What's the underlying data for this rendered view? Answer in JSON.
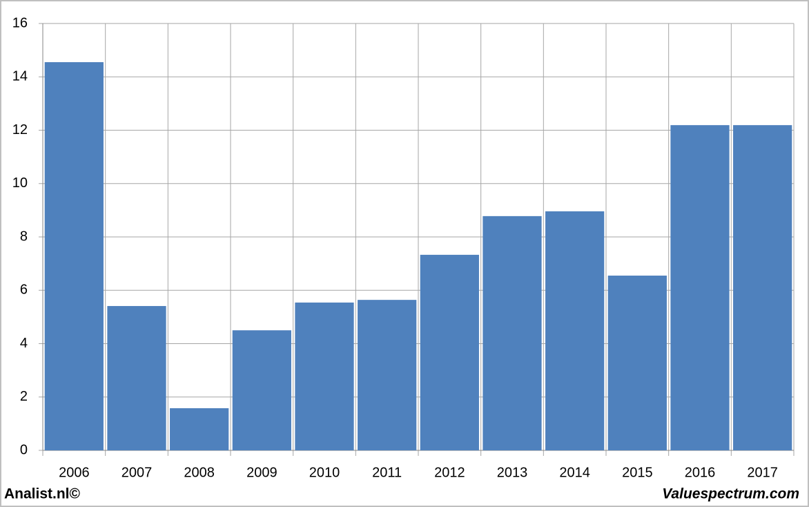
{
  "chart_data": {
    "type": "bar",
    "categories": [
      "2006",
      "2007",
      "2008",
      "2009",
      "2010",
      "2011",
      "2012",
      "2013",
      "2014",
      "2015",
      "2016",
      "2017"
    ],
    "values": [
      14.55,
      5.41,
      1.58,
      4.5,
      5.54,
      5.64,
      7.33,
      8.78,
      8.96,
      6.55,
      12.19,
      12.19
    ],
    "color": "#4f81bd",
    "ylim": [
      0,
      16
    ],
    "yticks": [
      0,
      2,
      4,
      6,
      8,
      10,
      12,
      14,
      16
    ],
    "grid": true
  },
  "footer": {
    "left": "Analist.nl©",
    "right": "Valuespectrum.com"
  }
}
